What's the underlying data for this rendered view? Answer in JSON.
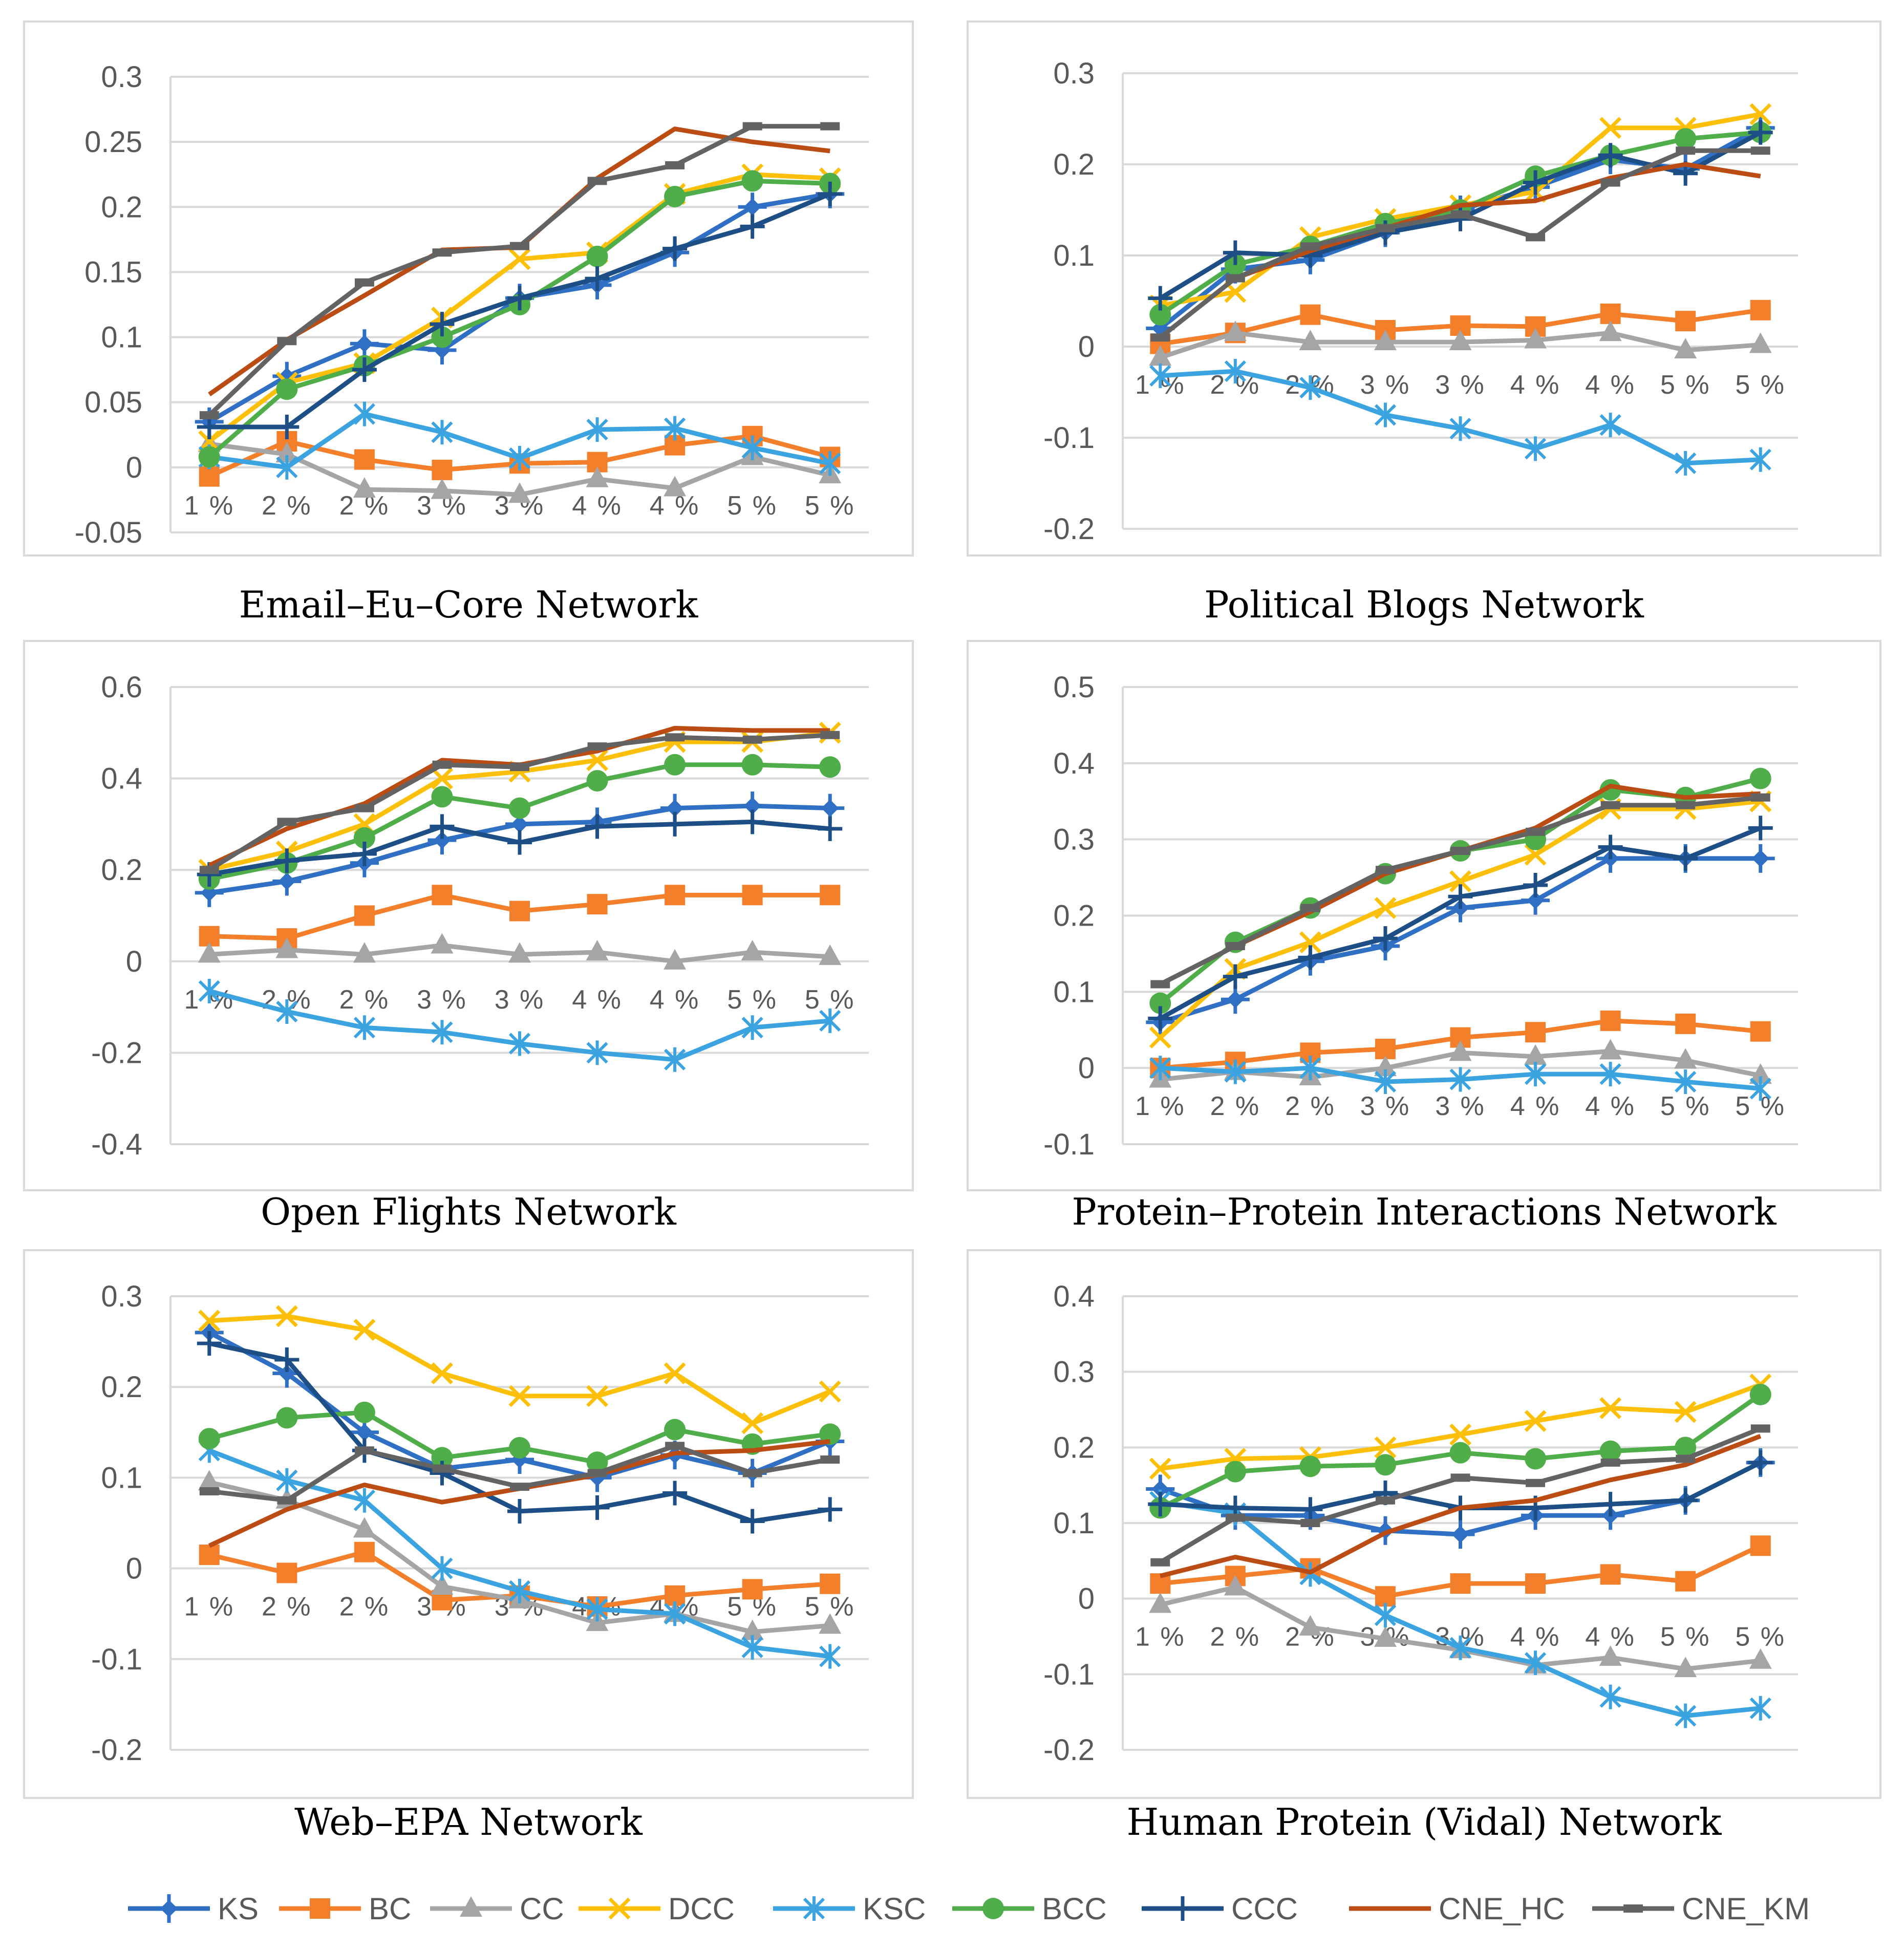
{
  "colors": {
    "KS": "#2f6fc4",
    "BC": "#f37f2b",
    "CC": "#a5a5a5",
    "DCC": "#fcc00b",
    "KSC": "#3aa3e0",
    "BCC": "#4fad4a",
    "CCC": "#1d4f86",
    "CNE_HC": "#bb4d14",
    "CNE_KM": "#636363"
  },
  "legend": [
    {
      "key": "KS",
      "label": "KS",
      "marker": "diamond-plus"
    },
    {
      "key": "BC",
      "label": "BC",
      "marker": "square"
    },
    {
      "key": "CC",
      "label": "CC",
      "marker": "triangle"
    },
    {
      "key": "DCC",
      "label": "DCC",
      "marker": "x"
    },
    {
      "key": "KSC",
      "label": "KSC",
      "marker": "star"
    },
    {
      "key": "BCC",
      "label": "BCC",
      "marker": "circle"
    },
    {
      "key": "CCC",
      "label": "CCC",
      "marker": "plus"
    },
    {
      "key": "CNE_HC",
      "label": "CNE_HC",
      "marker": "none"
    },
    {
      "key": "CNE_KM",
      "label": "CNE_KM",
      "marker": "dash"
    }
  ],
  "chart_data": [
    {
      "type": "line",
      "title": "Email–Eu–Core Network",
      "categories": [
        "1%",
        "2%",
        "2%",
        "3%",
        "3%",
        "4%",
        "4%",
        "5%",
        "5%"
      ],
      "ylim": [
        -0.05,
        0.3
      ],
      "yticks": [
        "0.3",
        "0.25",
        "0.2",
        "0.15",
        "0.1",
        "0.05",
        "0",
        "-0.05"
      ],
      "series": [
        {
          "name": "KS",
          "values": [
            0.035,
            0.07,
            0.095,
            0.09,
            0.13,
            0.14,
            0.165,
            0.2,
            0.21
          ]
        },
        {
          "name": "BC",
          "values": [
            -0.007,
            0.02,
            0.006,
            -0.002,
            0.003,
            0.004,
            0.017,
            0.024,
            0.008
          ]
        },
        {
          "name": "CC",
          "values": [
            0.018,
            0.01,
            -0.017,
            -0.018,
            -0.021,
            -0.009,
            -0.016,
            0.008,
            -0.006
          ]
        },
        {
          "name": "DCC",
          "values": [
            0.02,
            0.065,
            0.08,
            0.115,
            0.16,
            0.165,
            0.21,
            0.225,
            0.222
          ]
        },
        {
          "name": "KSC",
          "values": [
            0.008,
            0.0,
            0.041,
            0.027,
            0.007,
            0.029,
            0.03,
            0.015,
            0.003
          ]
        },
        {
          "name": "BCC",
          "values": [
            0.008,
            0.06,
            0.078,
            0.1,
            0.125,
            0.162,
            0.208,
            0.22,
            0.218
          ]
        },
        {
          "name": "CCC",
          "values": [
            0.031,
            0.031,
            0.075,
            0.11,
            0.13,
            0.145,
            0.168,
            0.185,
            0.21
          ]
        },
        {
          "name": "CNE_HC",
          "values": [
            0.056,
            0.098,
            0.132,
            0.167,
            0.169,
            0.222,
            0.26,
            0.25,
            0.243
          ]
        },
        {
          "name": "CNE_KM",
          "values": [
            0.04,
            0.097,
            0.142,
            0.165,
            0.17,
            0.22,
            0.232,
            0.262,
            0.262
          ]
        }
      ]
    },
    {
      "type": "line",
      "title": "Political Blogs Network",
      "categories": [
        "1%",
        "2%",
        "2%",
        "3%",
        "3%",
        "4%",
        "4%",
        "5%",
        "5%"
      ],
      "ylim": [
        -0.2,
        0.3
      ],
      "yticks": [
        "0.3",
        "0.2",
        "0.1",
        "0",
        "-0.1",
        "-0.2"
      ],
      "series": [
        {
          "name": "KS",
          "values": [
            0.02,
            0.085,
            0.095,
            0.125,
            0.15,
            0.175,
            0.205,
            0.195,
            0.24
          ]
        },
        {
          "name": "BC",
          "values": [
            0.003,
            0.015,
            0.035,
            0.018,
            0.023,
            0.022,
            0.036,
            0.028,
            0.04
          ]
        },
        {
          "name": "CC",
          "values": [
            -0.012,
            0.015,
            0.005,
            0.005,
            0.005,
            0.007,
            0.015,
            -0.004,
            0.002
          ]
        },
        {
          "name": "DCC",
          "values": [
            0.045,
            0.06,
            0.12,
            0.14,
            0.155,
            0.17,
            0.24,
            0.24,
            0.255
          ]
        },
        {
          "name": "KSC",
          "values": [
            -0.032,
            -0.027,
            -0.045,
            -0.075,
            -0.09,
            -0.112,
            -0.086,
            -0.128,
            -0.124
          ]
        },
        {
          "name": "BCC",
          "values": [
            0.035,
            0.09,
            0.11,
            0.135,
            0.15,
            0.187,
            0.21,
            0.228,
            0.235
          ]
        },
        {
          "name": "CCC",
          "values": [
            0.053,
            0.103,
            0.1,
            0.125,
            0.14,
            0.18,
            0.21,
            0.19,
            0.235
          ]
        },
        {
          "name": "CNE_HC",
          "values": [
            0.01,
            0.075,
            0.105,
            0.13,
            0.155,
            0.16,
            0.185,
            0.2,
            0.187
          ]
        },
        {
          "name": "CNE_KM",
          "values": [
            0.01,
            0.075,
            0.11,
            0.13,
            0.145,
            0.12,
            0.18,
            0.215,
            0.215
          ]
        }
      ]
    },
    {
      "type": "line",
      "title": "Open Flights Network",
      "categories": [
        "1%",
        "2%",
        "2%",
        "3%",
        "3%",
        "4%",
        "4%",
        "5%",
        "5%"
      ],
      "ylim": [
        -0.4,
        0.6
      ],
      "yticks": [
        "0.6",
        "0.4",
        "0.2",
        "0",
        "-0.2",
        "-0.4"
      ],
      "series": [
        {
          "name": "KS",
          "values": [
            0.15,
            0.175,
            0.215,
            0.265,
            0.3,
            0.305,
            0.335,
            0.34,
            0.335
          ]
        },
        {
          "name": "BC",
          "values": [
            0.055,
            0.05,
            0.1,
            0.145,
            0.11,
            0.125,
            0.145,
            0.145,
            0.145
          ]
        },
        {
          "name": "CC",
          "values": [
            0.015,
            0.025,
            0.015,
            0.035,
            0.015,
            0.02,
            0.0,
            0.02,
            0.01
          ]
        },
        {
          "name": "DCC",
          "values": [
            0.2,
            0.24,
            0.3,
            0.4,
            0.415,
            0.44,
            0.48,
            0.48,
            0.5
          ]
        },
        {
          "name": "KSC",
          "values": [
            -0.065,
            -0.11,
            -0.145,
            -0.155,
            -0.18,
            -0.2,
            -0.215,
            -0.145,
            -0.13
          ]
        },
        {
          "name": "BCC",
          "values": [
            0.18,
            0.215,
            0.27,
            0.36,
            0.335,
            0.395,
            0.43,
            0.43,
            0.425
          ]
        },
        {
          "name": "CCC",
          "values": [
            0.19,
            0.22,
            0.235,
            0.295,
            0.26,
            0.295,
            0.3,
            0.305,
            0.29
          ]
        },
        {
          "name": "CNE_HC",
          "values": [
            0.21,
            0.29,
            0.345,
            0.44,
            0.43,
            0.46,
            0.51,
            0.505,
            0.505
          ]
        },
        {
          "name": "CNE_KM",
          "values": [
            0.2,
            0.305,
            0.335,
            0.43,
            0.425,
            0.47,
            0.49,
            0.485,
            0.495
          ]
        }
      ]
    },
    {
      "type": "line",
      "title": "Protein–Protein Interactions Network",
      "categories": [
        "1%",
        "2%",
        "2%",
        "3%",
        "3%",
        "4%",
        "4%",
        "5%",
        "5%"
      ],
      "ylim": [
        -0.1,
        0.5
      ],
      "yticks": [
        "0.5",
        "0.4",
        "0.3",
        "0.2",
        "0.1",
        "0",
        "-0.1"
      ],
      "series": [
        {
          "name": "KS",
          "values": [
            0.06,
            0.09,
            0.14,
            0.16,
            0.21,
            0.22,
            0.275,
            0.275,
            0.275
          ]
        },
        {
          "name": "BC",
          "values": [
            0.0,
            0.008,
            0.02,
            0.025,
            0.04,
            0.047,
            0.062,
            0.058,
            0.048
          ]
        },
        {
          "name": "CC",
          "values": [
            -0.015,
            -0.005,
            -0.012,
            0.0,
            0.02,
            0.015,
            0.022,
            0.01,
            -0.01
          ]
        },
        {
          "name": "DCC",
          "values": [
            0.04,
            0.13,
            0.165,
            0.21,
            0.245,
            0.28,
            0.34,
            0.34,
            0.35
          ]
        },
        {
          "name": "KSC",
          "values": [
            0.0,
            -0.005,
            0.0,
            -0.018,
            -0.015,
            -0.008,
            -0.008,
            -0.018,
            -0.027
          ]
        },
        {
          "name": "BCC",
          "values": [
            0.085,
            0.165,
            0.21,
            0.255,
            0.285,
            0.3,
            0.365,
            0.355,
            0.38
          ]
        },
        {
          "name": "CCC",
          "values": [
            0.065,
            0.12,
            0.145,
            0.17,
            0.225,
            0.24,
            0.29,
            0.275,
            0.315
          ]
        },
        {
          "name": "CNE_HC",
          "values": [
            0.11,
            0.16,
            0.205,
            0.255,
            0.285,
            0.315,
            0.37,
            0.355,
            0.36
          ]
        },
        {
          "name": "CNE_KM",
          "values": [
            0.11,
            0.16,
            0.21,
            0.26,
            0.285,
            0.31,
            0.345,
            0.345,
            0.355
          ]
        }
      ]
    },
    {
      "type": "line",
      "title": "Web–EPA Network",
      "categories": [
        "1%",
        "2%",
        "2%",
        "3%",
        "3%",
        "4%",
        "4%",
        "5%",
        "5%"
      ],
      "ylim": [
        -0.2,
        0.3
      ],
      "yticks": [
        "0.3",
        "0.2",
        "0.1",
        "0",
        "-0.1",
        "-0.2"
      ],
      "series": [
        {
          "name": "KS",
          "values": [
            0.26,
            0.215,
            0.15,
            0.11,
            0.12,
            0.1,
            0.125,
            0.105,
            0.14
          ]
        },
        {
          "name": "BC",
          "values": [
            0.015,
            -0.005,
            0.018,
            -0.035,
            -0.03,
            -0.042,
            -0.03,
            -0.023,
            -0.017
          ]
        },
        {
          "name": "CC",
          "values": [
            0.095,
            0.075,
            0.043,
            -0.02,
            -0.035,
            -0.06,
            -0.05,
            -0.07,
            -0.063
          ]
        },
        {
          "name": "DCC",
          "values": [
            0.273,
            0.278,
            0.263,
            0.215,
            0.19,
            0.19,
            0.215,
            0.16,
            0.195
          ]
        },
        {
          "name": "KSC",
          "values": [
            0.13,
            0.097,
            0.075,
            0.0,
            -0.025,
            -0.045,
            -0.05,
            -0.087,
            -0.097
          ]
        },
        {
          "name": "BCC",
          "values": [
            0.143,
            0.166,
            0.172,
            0.122,
            0.133,
            0.117,
            0.153,
            0.137,
            0.148
          ]
        },
        {
          "name": "CCC",
          "values": [
            0.248,
            0.23,
            0.13,
            0.105,
            0.063,
            0.067,
            0.083,
            0.052,
            0.065
          ]
        },
        {
          "name": "CNE_HC",
          "values": [
            0.025,
            0.065,
            0.092,
            0.073,
            0.088,
            0.103,
            0.127,
            0.13,
            0.14
          ]
        },
        {
          "name": "CNE_KM",
          "values": [
            0.085,
            0.075,
            0.13,
            0.11,
            0.09,
            0.105,
            0.135,
            0.105,
            0.12
          ]
        }
      ]
    },
    {
      "type": "line",
      "title": "Human Protein (Vidal) Network",
      "categories": [
        "1%",
        "2%",
        "2%",
        "3%",
        "3%",
        "4%",
        "4%",
        "5%",
        "5%"
      ],
      "ylim": [
        -0.2,
        0.4
      ],
      "yticks": [
        "0.4",
        "0.3",
        "0.2",
        "0.1",
        "0",
        "-0.1",
        "-0.2"
      ],
      "series": [
        {
          "name": "KS",
          "values": [
            0.145,
            0.11,
            0.11,
            0.09,
            0.085,
            0.11,
            0.11,
            0.13,
            0.18
          ]
        },
        {
          "name": "BC",
          "values": [
            0.02,
            0.03,
            0.04,
            0.003,
            0.02,
            0.02,
            0.032,
            0.023,
            0.07
          ]
        },
        {
          "name": "CC",
          "values": [
            -0.008,
            0.015,
            -0.038,
            -0.053,
            -0.068,
            -0.088,
            -0.078,
            -0.093,
            -0.082
          ]
        },
        {
          "name": "DCC",
          "values": [
            0.172,
            0.185,
            0.187,
            0.2,
            0.217,
            0.235,
            0.252,
            0.247,
            0.283
          ]
        },
        {
          "name": "KSC",
          "values": [
            0.128,
            0.113,
            0.032,
            -0.022,
            -0.065,
            -0.085,
            -0.13,
            -0.155,
            -0.145
          ]
        },
        {
          "name": "BCC",
          "values": [
            0.12,
            0.168,
            0.175,
            0.177,
            0.193,
            0.185,
            0.195,
            0.2,
            0.27
          ]
        },
        {
          "name": "CCC",
          "values": [
            0.125,
            0.12,
            0.118,
            0.14,
            0.12,
            0.12,
            0.125,
            0.13,
            0.18
          ]
        },
        {
          "name": "CNE_HC",
          "values": [
            0.03,
            0.055,
            0.035,
            0.087,
            0.12,
            0.13,
            0.157,
            0.177,
            0.215
          ]
        },
        {
          "name": "CNE_KM",
          "values": [
            0.048,
            0.107,
            0.1,
            0.13,
            0.16,
            0.153,
            0.18,
            0.185,
            0.225
          ]
        }
      ]
    }
  ]
}
